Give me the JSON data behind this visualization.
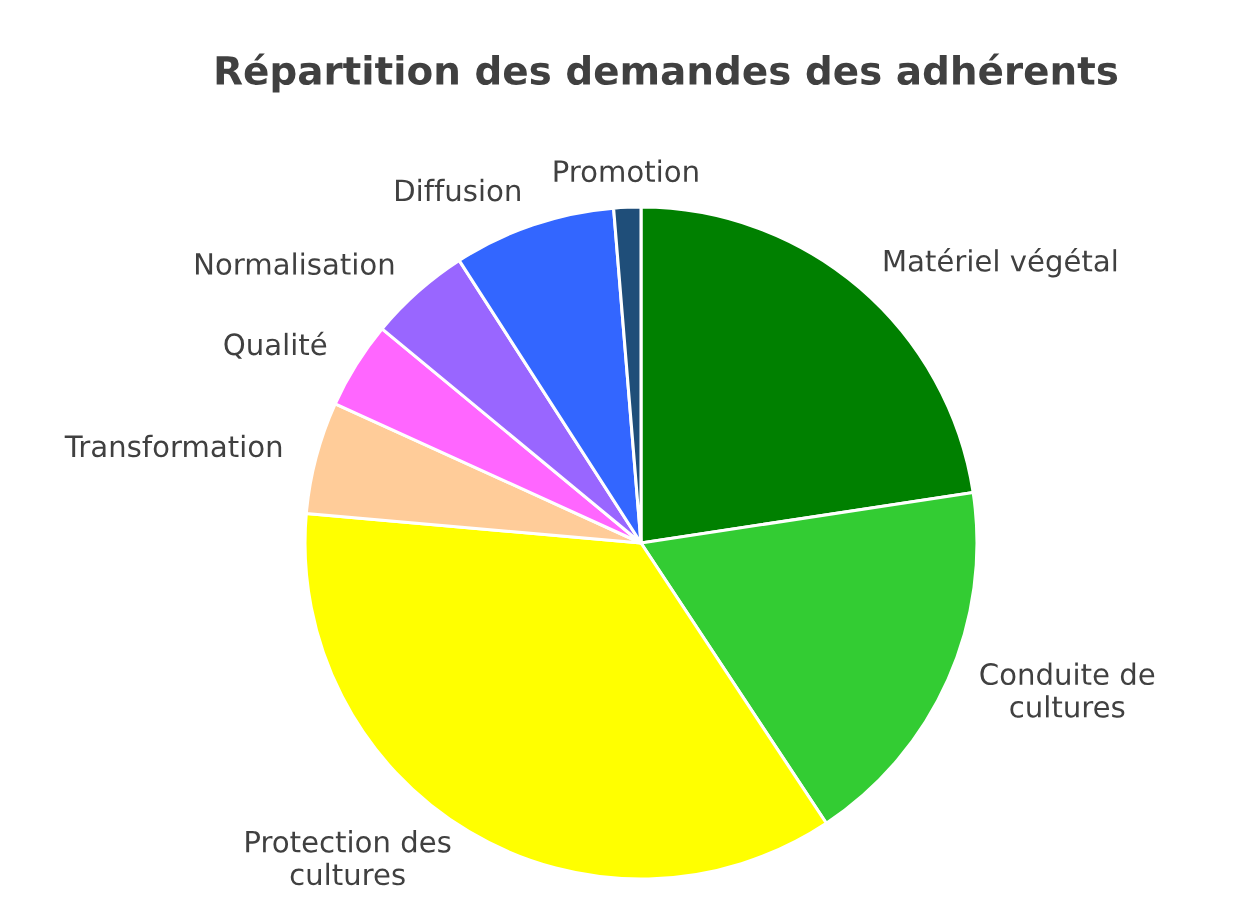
{
  "chart_data": {
    "type": "pie",
    "title": "Répartition des demandes des adhérents",
    "categories": [
      "Matériel végétal",
      "Conduite de\ncultures",
      "Protection des\ncultures",
      "Transformation",
      "Qualité",
      "Normalisation",
      "Diffusion",
      "Promotion"
    ],
    "values": [
      22.6,
      18.1,
      35.7,
      5.4,
      4.2,
      4.9,
      7.8,
      1.3
    ],
    "colors": [
      "#008000",
      "#33cc33",
      "#ffff00",
      "#ffcc99",
      "#ff66ff",
      "#9966ff",
      "#3366ff",
      "#1f4e79"
    ],
    "legend": false
  }
}
